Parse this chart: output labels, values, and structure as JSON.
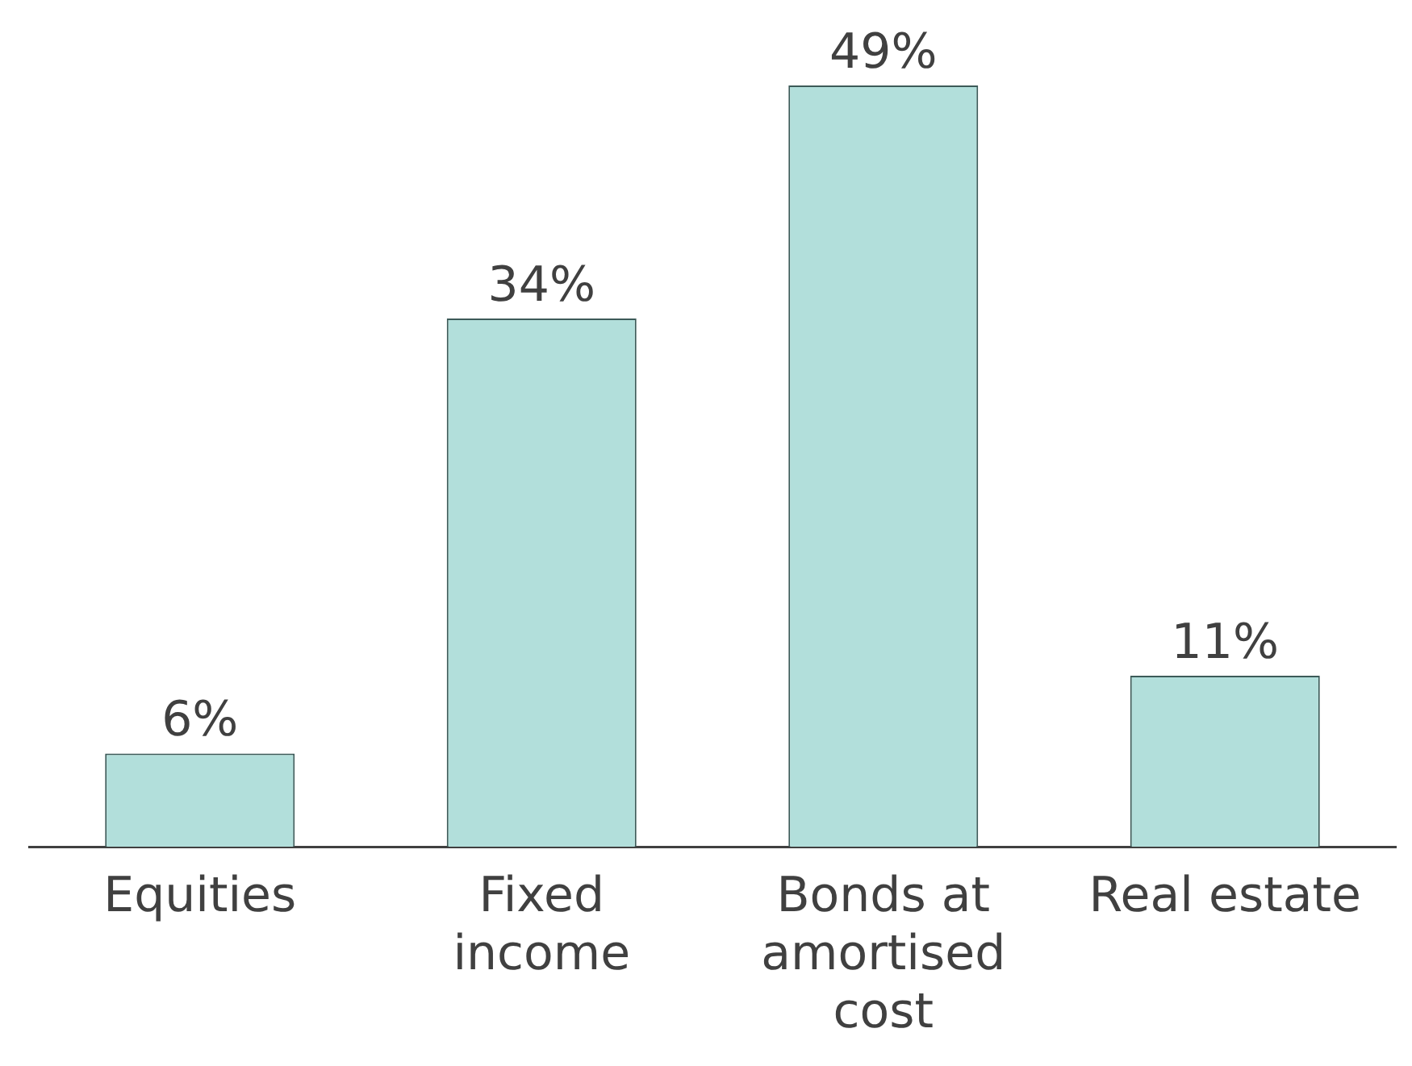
{
  "chart_data": {
    "type": "bar",
    "categories": [
      "Equities",
      "Fixed income",
      "Bonds at amortised cost",
      "Real estate"
    ],
    "values": [
      6,
      34,
      49,
      11
    ],
    "value_labels": [
      "6%",
      "34%",
      "49%",
      "11%"
    ],
    "color": "#b2dfdb",
    "grid": false,
    "legend": false
  }
}
